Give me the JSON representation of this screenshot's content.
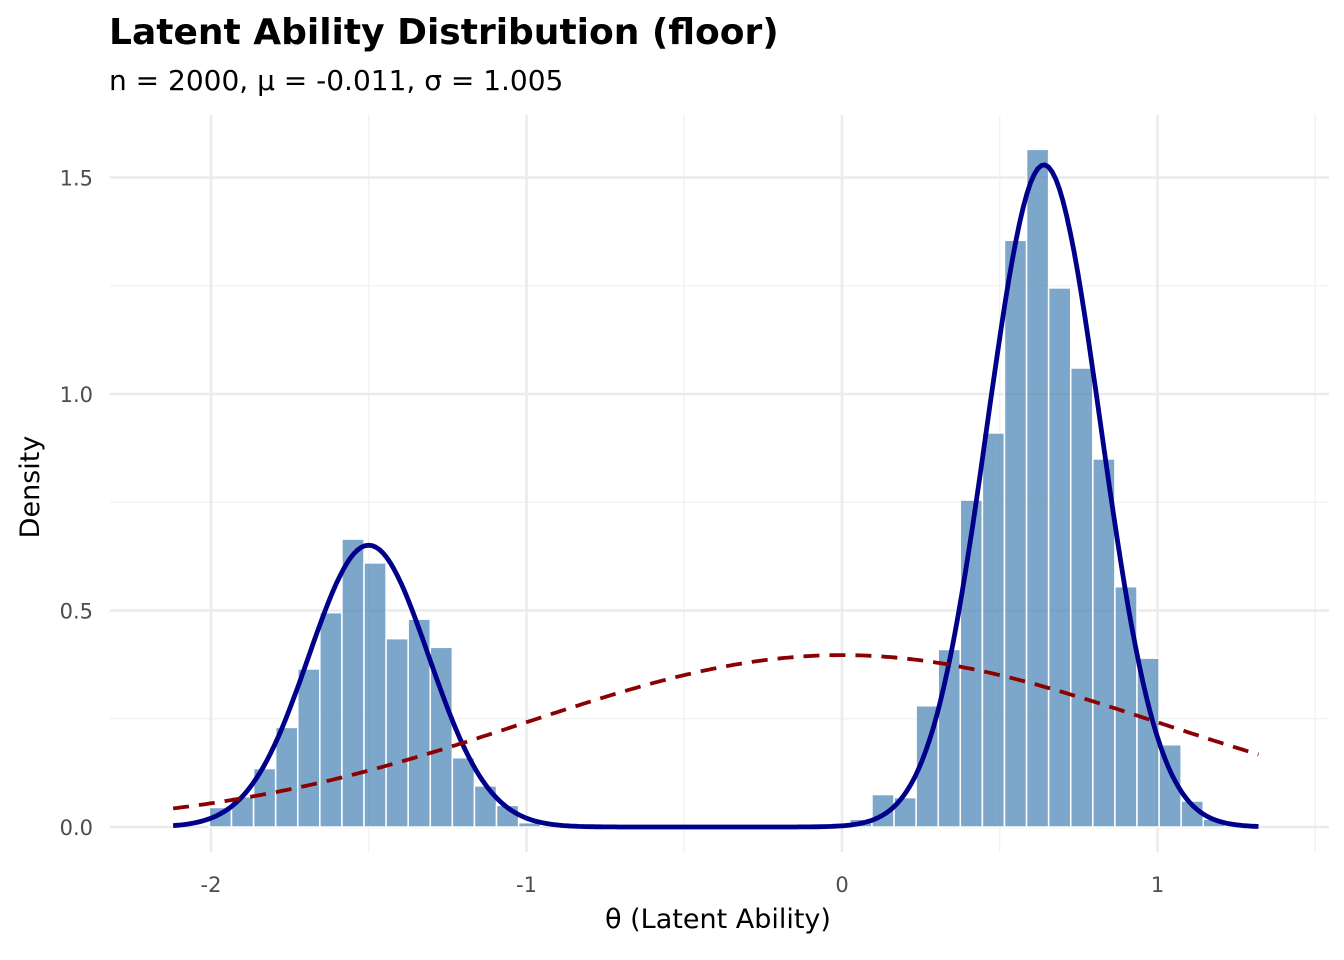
{
  "chart_data": {
    "type": "bar",
    "title": "Latent Ability Distribution (floor)",
    "subtitle": "n = 2000, μ = -0.011, σ = 1.005",
    "xlabel": "θ (Latent Ability)",
    "ylabel": "Density",
    "xlim": [
      -2.15,
      1.33
    ],
    "ylim": [
      0,
      1.6
    ],
    "x_ticks": [
      -2,
      -1,
      0,
      1
    ],
    "x_tick_labels": [
      "-2",
      "-1",
      "0",
      "1"
    ],
    "y_ticks": [
      0,
      0.5,
      1.0,
      1.5
    ],
    "y_tick_labels": [
      "0.0",
      "0.5",
      "1.0",
      "1.5"
    ],
    "grid": true,
    "bin_width": 0.07,
    "bars": [
      {
        "x": -1.97,
        "y": 0.045
      },
      {
        "x": -1.9,
        "y": 0.07
      },
      {
        "x": -1.83,
        "y": 0.135
      },
      {
        "x": -1.76,
        "y": 0.23
      },
      {
        "x": -1.69,
        "y": 0.365
      },
      {
        "x": -1.62,
        "y": 0.495
      },
      {
        "x": -1.55,
        "y": 0.665
      },
      {
        "x": -1.48,
        "y": 0.61
      },
      {
        "x": -1.41,
        "y": 0.435
      },
      {
        "x": -1.34,
        "y": 0.48
      },
      {
        "x": -1.27,
        "y": 0.415
      },
      {
        "x": -1.2,
        "y": 0.16
      },
      {
        "x": -1.13,
        "y": 0.095
      },
      {
        "x": -1.06,
        "y": 0.05
      },
      {
        "x": -0.99,
        "y": 0.01
      },
      {
        "x": 0.06,
        "y": 0.018
      },
      {
        "x": 0.13,
        "y": 0.075
      },
      {
        "x": 0.2,
        "y": 0.068
      },
      {
        "x": 0.27,
        "y": 0.28
      },
      {
        "x": 0.34,
        "y": 0.41
      },
      {
        "x": 0.41,
        "y": 0.755
      },
      {
        "x": 0.48,
        "y": 0.91
      },
      {
        "x": 0.55,
        "y": 1.355
      },
      {
        "x": 0.62,
        "y": 1.565
      },
      {
        "x": 0.69,
        "y": 1.245
      },
      {
        "x": 0.76,
        "y": 1.06
      },
      {
        "x": 0.83,
        "y": 0.85
      },
      {
        "x": 0.9,
        "y": 0.555
      },
      {
        "x": 0.97,
        "y": 0.39
      },
      {
        "x": 1.04,
        "y": 0.19
      },
      {
        "x": 1.11,
        "y": 0.06
      },
      {
        "x": 1.18,
        "y": 0.018
      }
    ],
    "series": [
      {
        "kind": "kde",
        "style": "solid",
        "color": "#00008b",
        "x_range": [
          -2.12,
          1.32
        ],
        "components": [
          {
            "weight": 0.31,
            "mean": -1.5,
            "sd": 0.19
          },
          {
            "weight": 0.69,
            "mean": 0.64,
            "sd": 0.18
          }
        ]
      },
      {
        "kind": "normal",
        "style": "dashed",
        "color": "#8b0000",
        "x_range": [
          -2.12,
          1.32
        ],
        "mean": 0.0,
        "sd": 1.005
      }
    ],
    "bar_color": "#4682b4",
    "bar_opacity": 0.7,
    "bar_edge_color": "#ffffff"
  }
}
